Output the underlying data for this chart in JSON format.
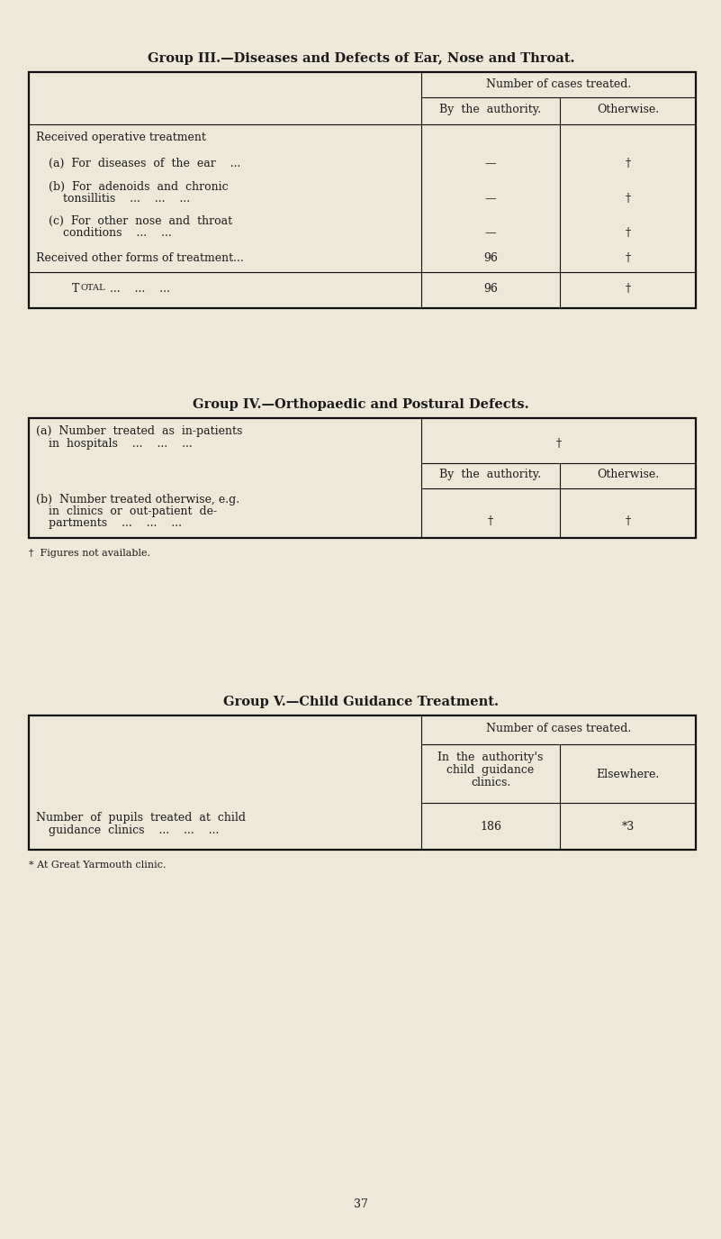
{
  "bg_color": "#ede8d8",
  "text_color": "#1a1a1a",
  "title_fontsize": 10.5,
  "body_fontsize": 9,
  "small_fontsize": 8,
  "page_number": "37",
  "group3_title": "Group III.—Diseases and Defects of Ear, Nose and Throat.",
  "group3_col_header": "Number of cases treated.",
  "group3_col1": "By  the  authority.",
  "group3_col2": "Otherwise.",
  "group4_title": "Group IV.—Orthopaedic and Postural Defects.",
  "group4_col1": "By  the  authority.",
  "group4_col2": "Otherwise.",
  "group4_footnote": "†  Figures not available.",
  "group5_title": "Group V.—Child Guidance Treatment.",
  "group5_col_header": "Number of cases treated.",
  "group5_col1_line1": "In  the  authority's",
  "group5_col1_line2": "child  guidance",
  "group5_col1_line3": "clinics.",
  "group5_col2": "Elsewhere.",
  "group5_val1": "186",
  "group5_val2": "*3",
  "group5_footnote": "* At Great Yarmouth clinic."
}
